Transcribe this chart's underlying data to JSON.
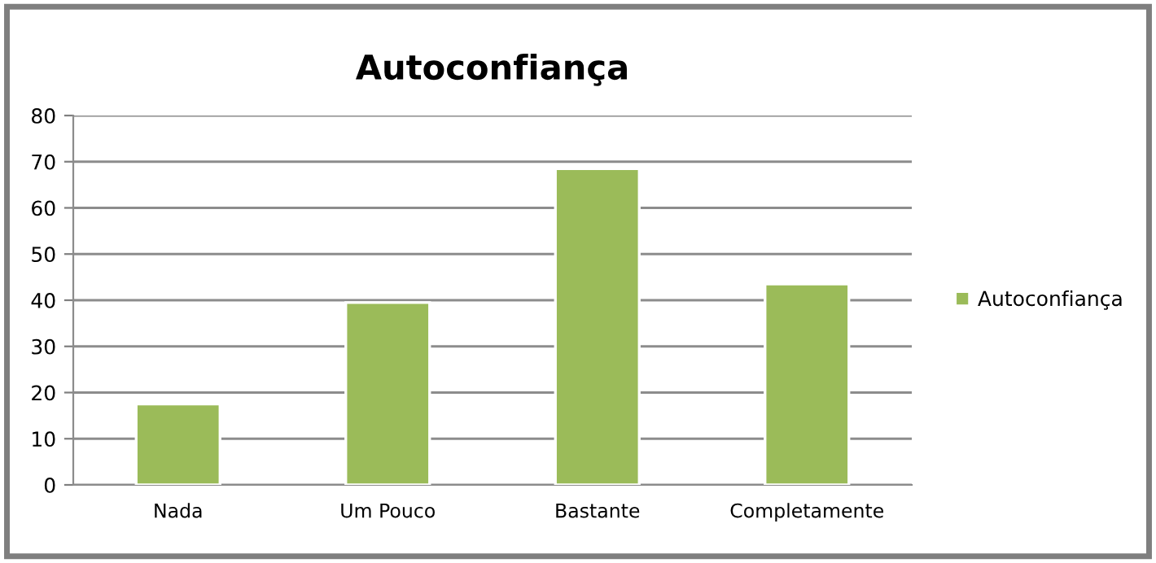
{
  "chart_data": {
    "type": "bar",
    "title": "Autoconfiança",
    "categories": [
      "Nada",
      "Um Pouco",
      "Bastante",
      "Completamente"
    ],
    "series": [
      {
        "name": "Autoconfiança",
        "color": "#9bbb59",
        "values": [
          17.5,
          39.5,
          68.5,
          43.5
        ]
      }
    ],
    "ylim": [
      0,
      80
    ],
    "yticks": [
      0,
      10,
      20,
      30,
      40,
      50,
      60,
      70,
      80
    ],
    "grid": "y",
    "legend": "right"
  }
}
